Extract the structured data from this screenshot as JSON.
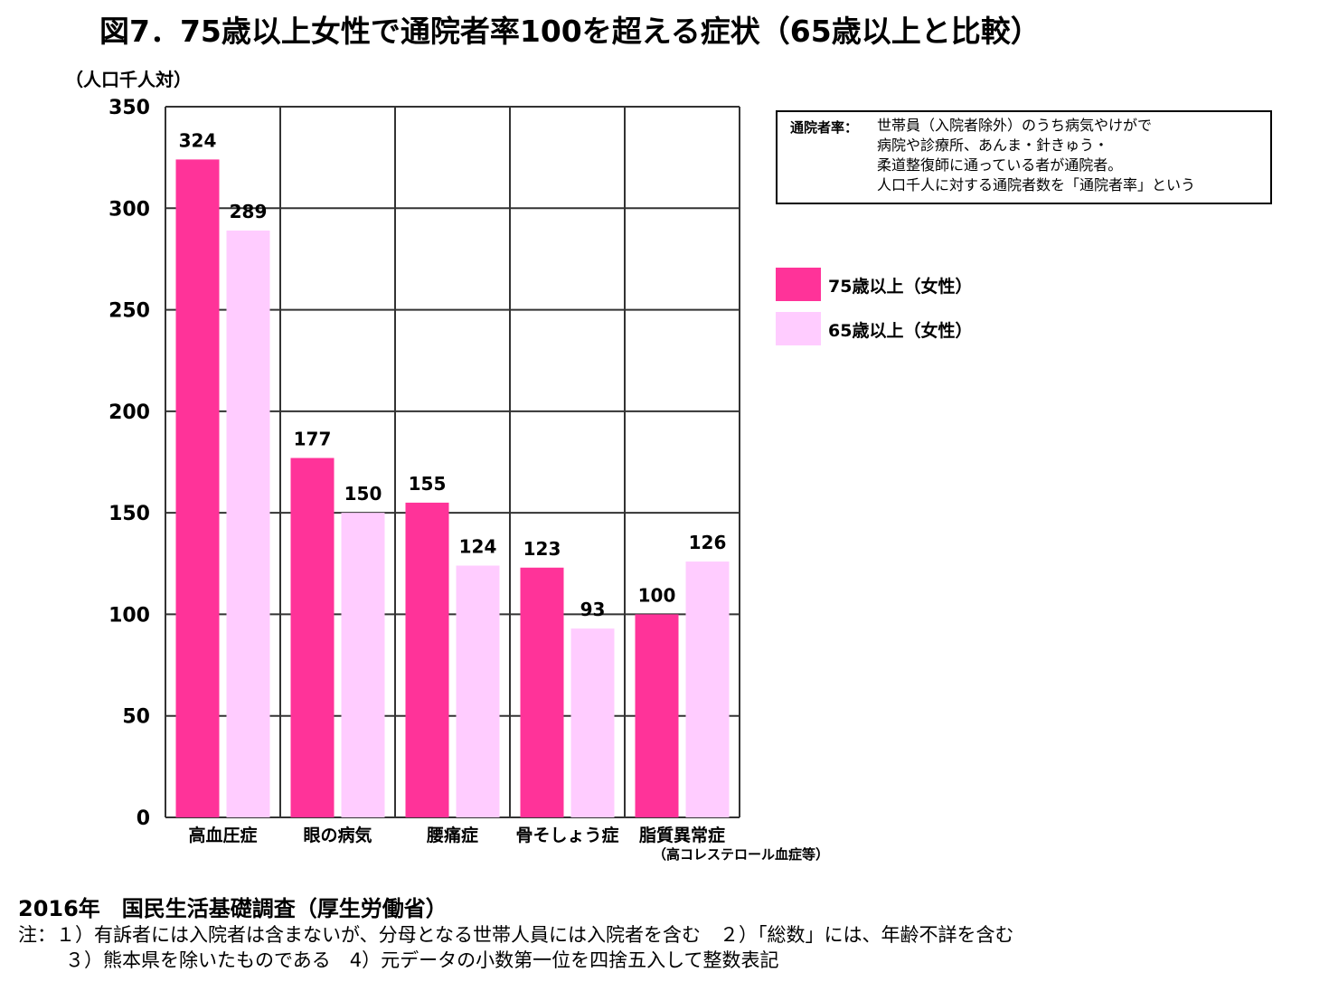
{
  "title": "図7．75歳以上女性で通院者率100を超える症状（65歳以上と比較）",
  "unit_label": "（人口千人対）",
  "definition": {
    "label": "通院者率：",
    "lines": [
      "世帯員（入院者除外）のうち病気やけがで",
      "病院や診療所、あんま・針きゅう・",
      "柔道整復師に通っている者が通院者。",
      "人口千人に対する通院者数を「通院者率」という"
    ]
  },
  "chart_data": {
    "type": "bar",
    "categories": [
      "高血圧症",
      "眼の病気",
      "腰痛症",
      "骨そしょう症",
      "脂質異常症"
    ],
    "category_sub": [
      "",
      "",
      "",
      "",
      "（高コレステロール血症等）"
    ],
    "series": [
      {
        "name": "75歳以上（女性）",
        "values": [
          324,
          177,
          155,
          123,
          100
        ],
        "color": "#ff3399"
      },
      {
        "name": "65歳以上（女性）",
        "values": [
          289,
          150,
          124,
          93,
          126
        ],
        "color": "#ffccff"
      }
    ],
    "yticks": [
      0,
      50,
      100,
      150,
      200,
      250,
      300,
      350
    ],
    "ylim": [
      0,
      350
    ],
    "grid": true,
    "legend": "right"
  },
  "source": "2016年　国民生活基礎調査（厚生労働省）",
  "notes": [
    "注：１）有訴者には入院者は含まないが、分母となる世帯人員には入院者を含む　２）「総数」には、年齢不詳を含む",
    "３）熊本県を除いたものである　4）元データの小数第一位を四捨五入して整数表記"
  ]
}
